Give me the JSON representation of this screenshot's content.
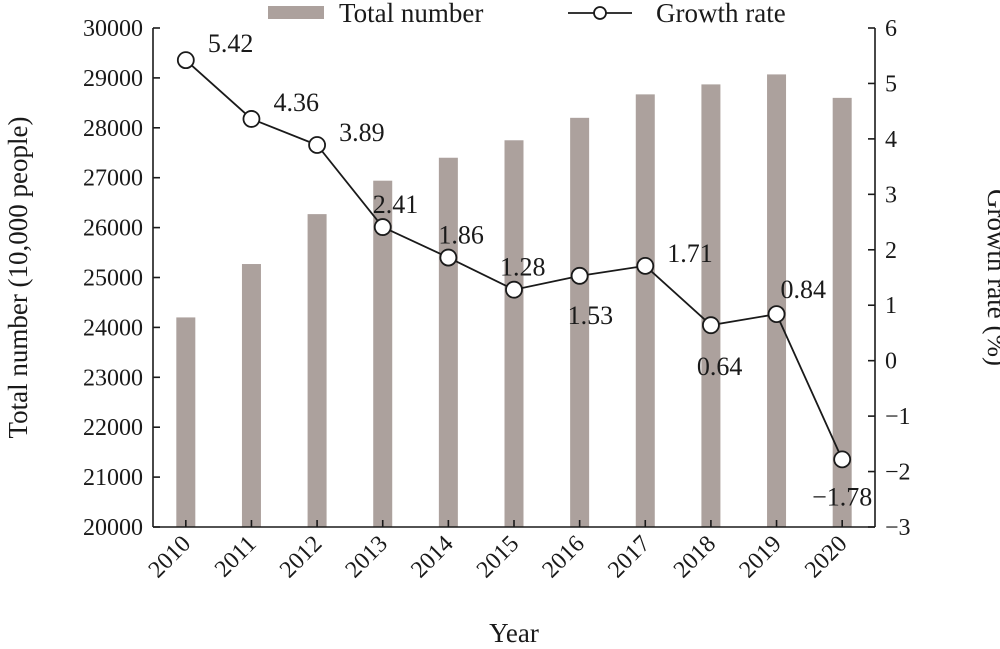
{
  "chart_data": {
    "type": "bar+line",
    "title": "",
    "xlabel": "Year",
    "ylabel_left": "Total number (10,000 people)",
    "ylabel_right": "Growth rate (%)",
    "categories": [
      "2010",
      "2011",
      "2012",
      "2013",
      "2014",
      "2015",
      "2016",
      "2017",
      "2018",
      "2019",
      "2020"
    ],
    "left_axis": {
      "min": 20000,
      "max": 30000,
      "ticks": [
        "20000",
        "21000",
        "22000",
        "23000",
        "24000",
        "25000",
        "26000",
        "27000",
        "28000",
        "29000",
        "30000"
      ]
    },
    "right_axis": {
      "min": -3,
      "max": 6,
      "ticks": [
        "−3",
        "−2",
        "−1",
        "0",
        "1",
        "2",
        "3",
        "4",
        "5",
        "6"
      ]
    },
    "series": [
      {
        "name": "Total number",
        "type": "bar",
        "axis": "left",
        "color": "#aca19d",
        "values": [
          24200,
          25270,
          26270,
          26940,
          27400,
          27750,
          28200,
          28670,
          28870,
          29070,
          28600
        ]
      },
      {
        "name": "Growth rate",
        "type": "line",
        "axis": "right",
        "color": "#1a1a1a",
        "values": [
          5.42,
          4.36,
          3.89,
          2.41,
          1.86,
          1.28,
          1.53,
          1.71,
          0.64,
          0.84,
          -1.78
        ],
        "labels": [
          "5.42",
          "4.36",
          "3.89",
          "2.41",
          "1.86",
          "1.28",
          "1.53",
          "1.71",
          "0.64",
          "0.84",
          "−1.78"
        ]
      }
    ],
    "legend": {
      "placement": "top"
    },
    "grid": false
  }
}
